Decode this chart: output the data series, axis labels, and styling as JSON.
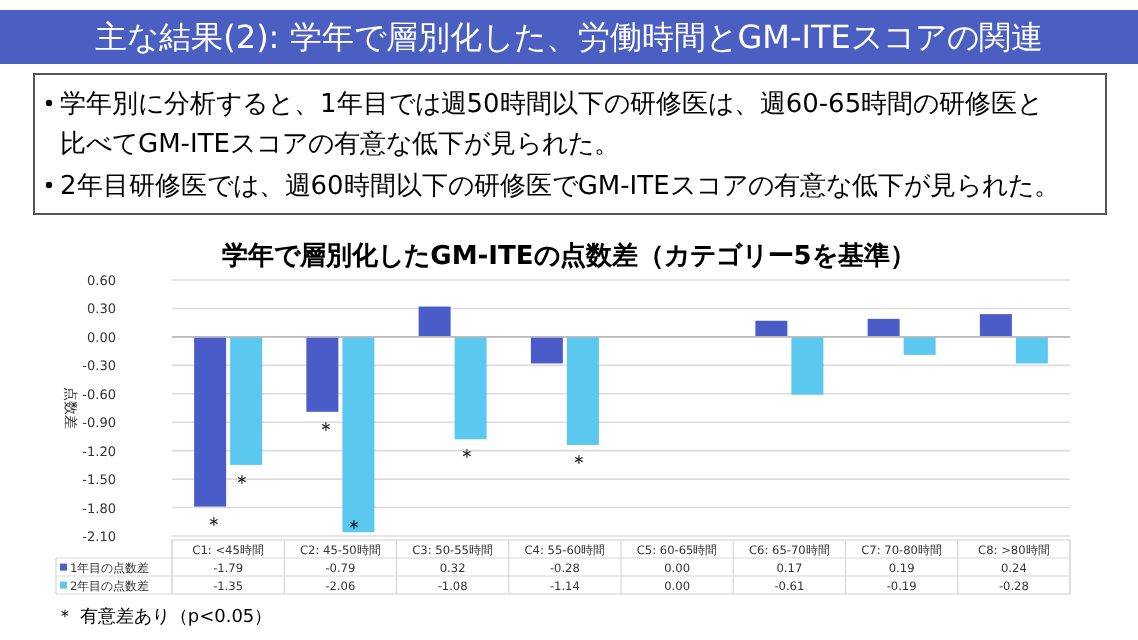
{
  "chart_data": {
    "type": "bar",
    "title": "主な結果(2): 学年で層別化した、労働時間とGM-ITEスコアの関連",
    "subtitle": "学年で層別化したGM-ITEの点数差（カテゴリー5を基準）",
    "ylabel": "点数差",
    "categories": [
      "C1: <45時間",
      "C2: 45-50時間",
      "C3: 50-55時間",
      "C4: 55-60時間",
      "C5: 60-65時間",
      "C6: 65-70時間",
      "C7: 70-80時間",
      "C8: >80時間"
    ],
    "series": [
      {
        "name": "1年目の点数差",
        "color": "#4a5cc8",
        "values": [
          -1.79,
          -0.79,
          0.32,
          -0.28,
          0.0,
          0.17,
          0.19,
          0.24
        ],
        "value_labels": [
          "-1.79",
          "-0.79",
          "0.32",
          "-0.28",
          "0.00",
          "0.17",
          "0.19",
          "0.24"
        ]
      },
      {
        "name": "2年目の点数差",
        "color": "#5bc8f0",
        "values": [
          -1.35,
          -2.06,
          -1.08,
          -1.14,
          0.0,
          -0.61,
          -0.19,
          -0.28
        ],
        "value_labels": [
          "-1.35",
          "-2.06",
          "-1.08",
          "-1.14",
          "0.00",
          "-0.61",
          "-0.19",
          "-0.28"
        ]
      }
    ],
    "ylim": [
      -2.1,
      0.6
    ],
    "yticks": [
      {
        "value": 0.6,
        "label": "0.60"
      },
      {
        "value": 0.3,
        "label": "0.30"
      },
      {
        "value": 0,
        "label": "0.00"
      },
      {
        "value": -0.3,
        "label": "-0.30"
      },
      {
        "value": -0.6,
        "label": "-0.60"
      },
      {
        "value": -0.9,
        "label": "-0.90"
      },
      {
        "value": -1.2,
        "label": "-1.20"
      },
      {
        "value": -1.5,
        "label": "-1.50"
      },
      {
        "value": -1.8,
        "label": "-1.80"
      },
      {
        "value": -2.1,
        "label": "-2.10"
      }
    ],
    "grid": "y",
    "legend": "bottom left",
    "annotations": [
      "学年別に分析すると、1年目では週50時間以下の研修医は、週60-65時間の研修医と比べてGM-ITEスコアの有意な低下が見られた。",
      "2年目研修医では、週60時間以下の研修医でGM-ITEスコアの有意な低下が見られた。",
      "＊ 有意差あり（p<0.05）",
      {
        "text": "＊",
        "x": "C1: <45時間",
        "y": -1.79
      },
      {
        "text": "＊",
        "x": "C1: <45時間",
        "y": -1.35
      },
      {
        "text": "＊",
        "x": "C2: 45-50時間",
        "y": -0.79
      },
      {
        "text": "＊",
        "x": "C2: 45-50時間",
        "y": -2.06
      },
      {
        "text": "＊",
        "x": "C3: 50-55時間",
        "y": -1.08
      },
      {
        "text": "＊",
        "x": "C4: 55-60時間",
        "y": -1.14
      }
    ]
  }
}
